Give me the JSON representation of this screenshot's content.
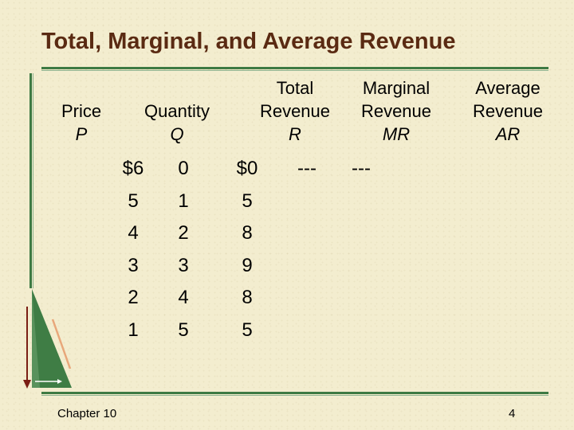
{
  "title": "Total, Marginal, and Average Revenue",
  "headers": {
    "price": {
      "line1": "Price",
      "symbol": "P"
    },
    "quantity": {
      "line1": "Quantity",
      "symbol": "Q"
    },
    "total": {
      "line1": "Total",
      "line2": "Revenue",
      "symbol": "R"
    },
    "marginal": {
      "line1": "Marginal",
      "line2": "Revenue",
      "symbol": "MR"
    },
    "average": {
      "line1": "Average",
      "line2": "Revenue",
      "symbol": "AR"
    }
  },
  "table": {
    "price": [
      "$6",
      "5",
      "4",
      "3",
      "2",
      "1"
    ],
    "quantity": [
      "0",
      "1",
      "2",
      "3",
      "4",
      "5"
    ],
    "total_revenue": [
      "$0",
      "5",
      "8",
      "9",
      "8",
      "5"
    ],
    "marginal_revenue": [
      "---"
    ],
    "average_revenue": [
      "---"
    ]
  },
  "footer": {
    "chapter": "Chapter 10",
    "page": "4"
  }
}
